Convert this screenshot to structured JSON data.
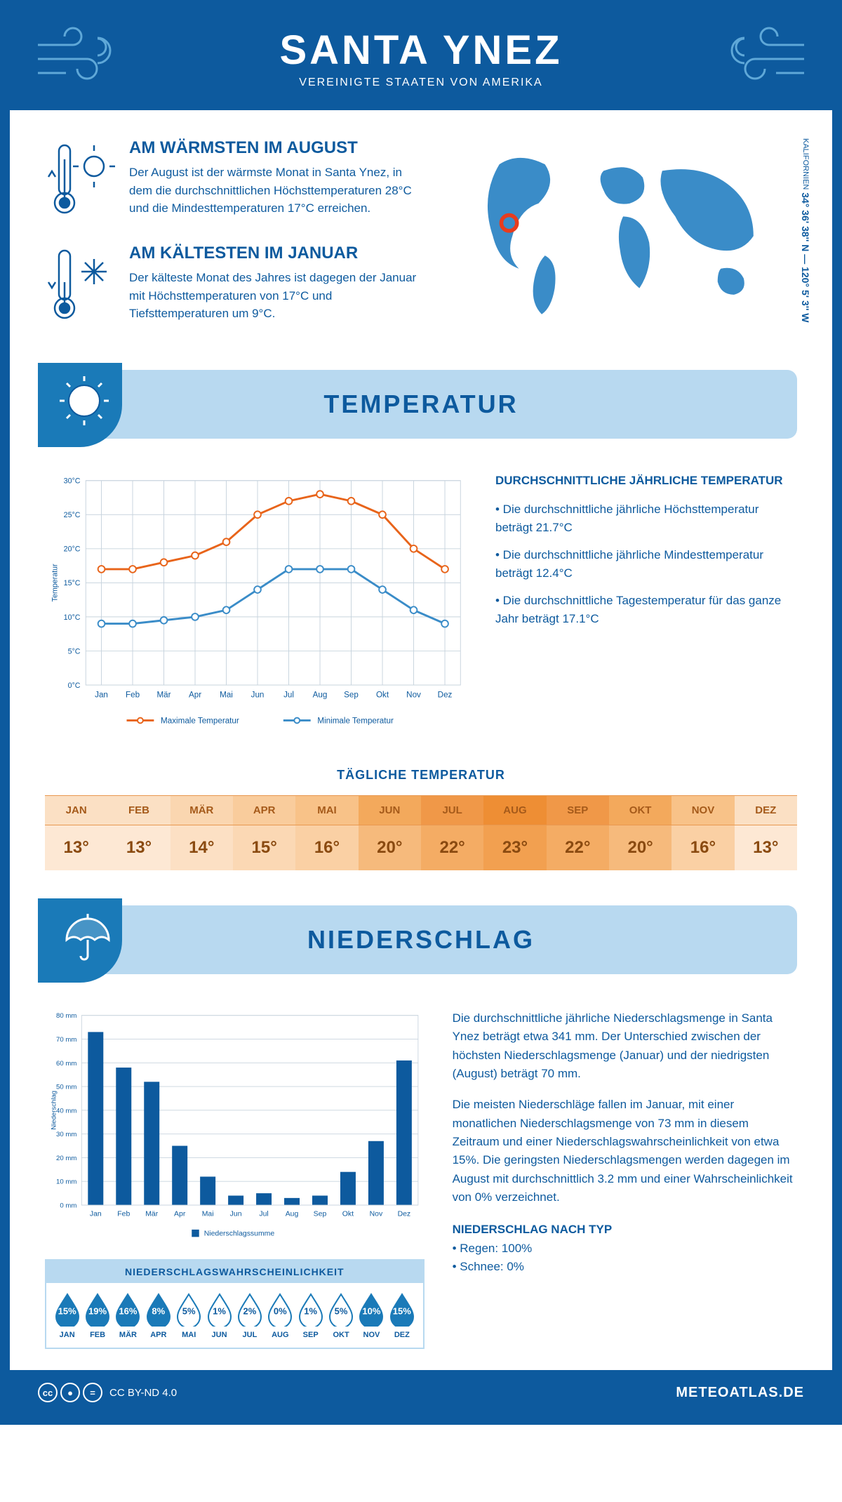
{
  "header": {
    "title": "SANTA YNEZ",
    "subtitle": "VEREINIGTE STAATEN VON AMERIKA"
  },
  "coords": {
    "main": "34° 36' 38'' N — 120° 5' 3'' W",
    "region": "KALIFORNIEN"
  },
  "colors": {
    "primary": "#0d5a9e",
    "light_blue": "#b8d9f0",
    "mid_blue": "#1a7ab8",
    "line_max": "#e8641a",
    "line_min": "#3a8cc8",
    "bar": "#0d5a9e",
    "grid": "#c8d4de",
    "marker_red": "#e73c1e"
  },
  "warmest": {
    "title": "AM WÄRMSTEN IM AUGUST",
    "text": "Der August ist der wärmste Monat in Santa Ynez, in dem die durchschnittlichen Höchsttemperaturen 28°C und die Mindesttemperaturen 17°C erreichen."
  },
  "coldest": {
    "title": "AM KÄLTESTEN IM JANUAR",
    "text": "Der kälteste Monat des Jahres ist dagegen der Januar mit Höchsttemperaturen von 17°C und Tiefsttemperaturen um 9°C."
  },
  "temp_section": {
    "title": "TEMPERATUR"
  },
  "temp_chart": {
    "type": "line",
    "months": [
      "Jan",
      "Feb",
      "Mär",
      "Apr",
      "Mai",
      "Jun",
      "Jul",
      "Aug",
      "Sep",
      "Okt",
      "Nov",
      "Dez"
    ],
    "max_series": [
      17,
      17,
      18,
      19,
      21,
      25,
      27,
      28,
      27,
      25,
      20,
      17
    ],
    "min_series": [
      9,
      9,
      9.5,
      10,
      11,
      14,
      17,
      17,
      17,
      14,
      11,
      9
    ],
    "ylim": [
      0,
      30
    ],
    "ytick_step": 5,
    "ylabel": "Temperatur",
    "legend_max": "Maximale Temperatur",
    "legend_min": "Minimale Temperatur",
    "line_width": 3,
    "marker": "circle",
    "marker_size": 5,
    "background": "#ffffff",
    "grid_color": "#c8d4de"
  },
  "temp_text": {
    "title": "DURCHSCHNITTLICHE JÄHRLICHE TEMPERATUR",
    "b1": "• Die durchschnittliche jährliche Höchsttemperatur beträgt 21.7°C",
    "b2": "• Die durchschnittliche jährliche Mindesttemperatur beträgt 12.4°C",
    "b3": "• Die durchschnittliche Tagestemperatur für das ganze Jahr beträgt 17.1°C"
  },
  "daily": {
    "title": "TÄGLICHE TEMPERATUR",
    "months": [
      "JAN",
      "FEB",
      "MÄR",
      "APR",
      "MAI",
      "JUN",
      "JUL",
      "AUG",
      "SEP",
      "OKT",
      "NOV",
      "DEZ"
    ],
    "values": [
      "13°",
      "13°",
      "14°",
      "15°",
      "16°",
      "20°",
      "22°",
      "23°",
      "22°",
      "20°",
      "16°",
      "13°"
    ],
    "bg_top": [
      "#fbe0c4",
      "#fbe0c4",
      "#fad6b0",
      "#f9cc9c",
      "#f8c288",
      "#f3a95c",
      "#f09848",
      "#ee8e34",
      "#f09848",
      "#f3a95c",
      "#f8c288",
      "#fbe0c4"
    ],
    "bg_bot": [
      "#fde8d4",
      "#fde8d4",
      "#fce0c4",
      "#fbd8b4",
      "#fad0a4",
      "#f6ba7c",
      "#f4ac64",
      "#f2a050",
      "#f4ac64",
      "#f6ba7c",
      "#fad0a4",
      "#fde8d4"
    ]
  },
  "precip_section": {
    "title": "NIEDERSCHLAG"
  },
  "precip_chart": {
    "type": "bar",
    "months": [
      "Jan",
      "Feb",
      "Mär",
      "Apr",
      "Mai",
      "Jun",
      "Jul",
      "Aug",
      "Sep",
      "Okt",
      "Nov",
      "Dez"
    ],
    "values": [
      73,
      58,
      52,
      25,
      12,
      4,
      5,
      3,
      4,
      14,
      27,
      61
    ],
    "ylim": [
      0,
      80
    ],
    "ytick_step": 10,
    "ylabel": "Niederschlag",
    "bar_color": "#0d5a9e",
    "bar_width": 0.55,
    "legend": "Niederschlagssumme",
    "grid_color": "#c8d4de"
  },
  "precip_text": {
    "p1": "Die durchschnittliche jährliche Niederschlagsmenge in Santa Ynez beträgt etwa 341 mm. Der Unterschied zwischen der höchsten Niederschlagsmenge (Januar) und der niedrigsten (August) beträgt 70 mm.",
    "p2": "Die meisten Niederschläge fallen im Januar, mit einer monatlichen Niederschlagsmenge von 73 mm in diesem Zeitraum und einer Niederschlagswahrscheinlichkeit von etwa 15%. Die geringsten Niederschlagsmengen werden dagegen im August mit durchschnittlich 3.2 mm und einer Wahrscheinlichkeit von 0% verzeichnet.",
    "type_title": "NIEDERSCHLAG NACH TYP",
    "type_rain": "• Regen: 100%",
    "type_snow": "• Schnee: 0%"
  },
  "prob": {
    "title": "NIEDERSCHLAGSWAHRSCHEINLICHKEIT",
    "months": [
      "JAN",
      "FEB",
      "MÄR",
      "APR",
      "MAI",
      "JUN",
      "JUL",
      "AUG",
      "SEP",
      "OKT",
      "NOV",
      "DEZ"
    ],
    "values": [
      "15%",
      "19%",
      "16%",
      "8%",
      "5%",
      "1%",
      "2%",
      "0%",
      "1%",
      "5%",
      "10%",
      "15%"
    ],
    "filled": [
      true,
      true,
      true,
      true,
      false,
      false,
      false,
      false,
      false,
      false,
      true,
      true
    ]
  },
  "footer": {
    "license": "CC BY-ND 4.0",
    "site": "METEOATLAS.DE"
  }
}
